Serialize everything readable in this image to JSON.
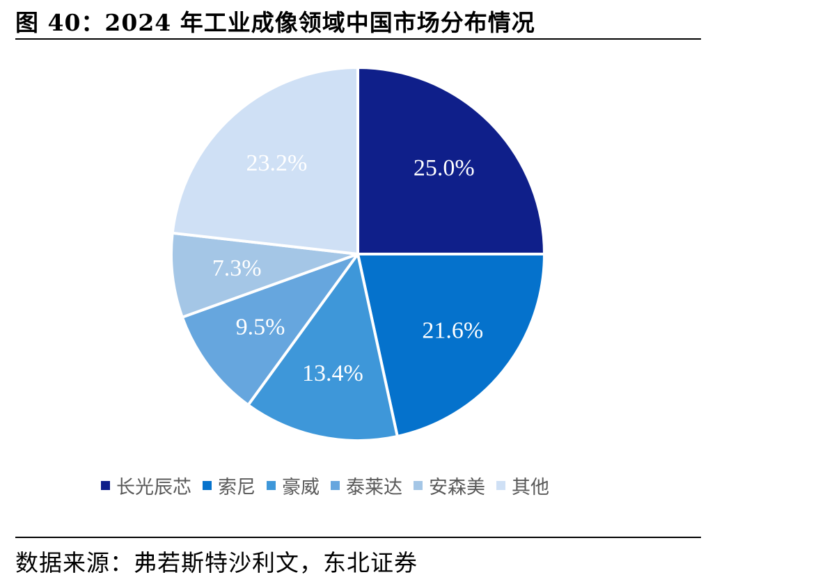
{
  "title": "图  40：2024 年工业成像领域中国市场分布情况",
  "source": "数据来源：弗若斯特沙利文，东北证券",
  "chart_data": {
    "type": "pie",
    "labels": [
      "长光辰芯",
      "索尼",
      "豪威",
      "泰莱达",
      "安森美",
      "其他"
    ],
    "values": [
      25.0,
      21.6,
      13.4,
      9.5,
      7.3,
      23.2
    ],
    "data_labels": [
      "25.0%",
      "21.6%",
      "13.4%",
      "9.5%",
      "7.3%",
      "23.2%"
    ],
    "colors": [
      "#0f1f8a",
      "#0572cc",
      "#3e97d9",
      "#66a6de",
      "#a4c6e6",
      "#cfe0f5"
    ],
    "label_colors": [
      "#ffffff",
      "#ffffff",
      "#ffffff",
      "#ffffff",
      "#ffffff",
      "#ffffff"
    ],
    "start": "12 o'clock",
    "direction": "clockwise",
    "legend_position": "bottom"
  }
}
